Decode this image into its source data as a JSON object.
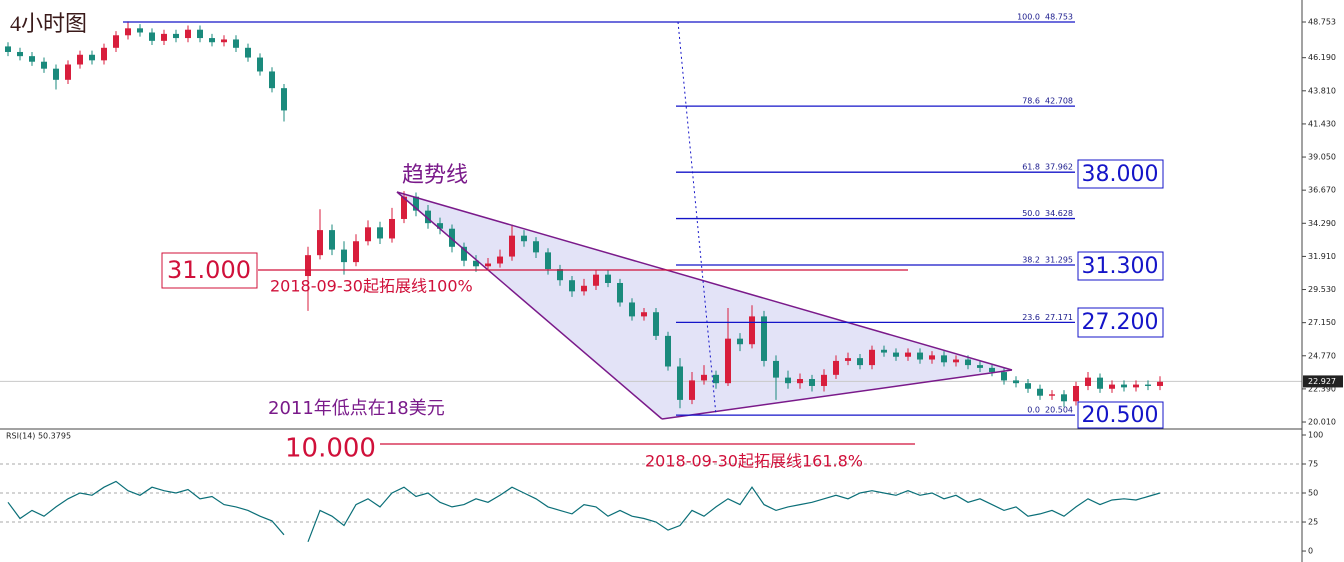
{
  "chart_data": [
    {
      "type": "candlestick",
      "title": "4小时图",
      "open": [
        47.0,
        46.6,
        46.3,
        45.9,
        45.4,
        44.6,
        45.7,
        46.4,
        46.0,
        46.9,
        47.8,
        48.3,
        48.0,
        47.4,
        47.9,
        47.6,
        48.2,
        47.6,
        47.3,
        47.5,
        46.9,
        46.2,
        45.2,
        44.0,
        null,
        30.5,
        32.0,
        33.8,
        32.4,
        31.5,
        33.0,
        34.0,
        33.2,
        34.6,
        36.2,
        35.2,
        34.3,
        33.9,
        32.6,
        31.6,
        31.2,
        31.4,
        31.9,
        33.4,
        33.0,
        32.2,
        31.0,
        30.2,
        29.4,
        29.8,
        30.6,
        30.0,
        28.6,
        27.6,
        27.9,
        26.2,
        24.0,
        21.6,
        23.0,
        23.4,
        22.8,
        26.0,
        25.6,
        27.6,
        24.4,
        23.2,
        22.8,
        23.1,
        22.6,
        23.4,
        24.4,
        24.6,
        24.1,
        25.2,
        25.0,
        24.7,
        25.0,
        24.5,
        24.8,
        24.3,
        24.5,
        24.1,
        23.9,
        23.6,
        23.0,
        22.8,
        22.4,
        21.9,
        22.0,
        21.5,
        22.6,
        23.2,
        22.4,
        22.7,
        22.5,
        22.7,
        22.6
      ],
      "high": [
        47.3,
        46.9,
        46.6,
        46.2,
        45.7,
        46.0,
        46.7,
        46.7,
        47.2,
        48.1,
        48.8,
        48.6,
        48.3,
        48.2,
        48.2,
        48.5,
        48.5,
        47.9,
        47.8,
        47.8,
        47.2,
        46.5,
        45.5,
        44.3,
        null,
        32.6,
        35.3,
        34.2,
        33.0,
        33.5,
        34.5,
        34.4,
        35.4,
        36.6,
        36.5,
        35.6,
        34.7,
        34.2,
        32.9,
        32.0,
        31.8,
        32.4,
        34.2,
        33.8,
        33.3,
        32.5,
        31.3,
        30.5,
        30.3,
        30.9,
        30.9,
        30.3,
        28.9,
        28.2,
        28.2,
        26.5,
        24.6,
        23.6,
        24.1,
        23.7,
        28.2,
        26.4,
        28.4,
        28.0,
        24.8,
        23.7,
        23.5,
        23.4,
        23.8,
        24.8,
        25.0,
        24.9,
        25.5,
        25.5,
        25.3,
        25.3,
        25.3,
        25.1,
        25.1,
        24.8,
        24.8,
        24.4,
        24.2,
        23.9,
        23.3,
        23.1,
        22.7,
        22.3,
        22.3,
        22.9,
        23.6,
        23.5,
        23.0,
        23.0,
        23.0,
        23.0,
        23.3
      ],
      "low": [
        46.3,
        46.0,
        45.6,
        45.1,
        43.9,
        44.3,
        45.4,
        45.7,
        45.7,
        46.6,
        47.5,
        47.7,
        47.1,
        47.1,
        47.3,
        47.3,
        47.3,
        47.0,
        47.0,
        46.6,
        45.9,
        44.9,
        43.7,
        41.6,
        null,
        28.0,
        31.7,
        32.0,
        30.6,
        31.2,
        32.7,
        32.8,
        32.9,
        34.3,
        34.8,
        33.9,
        33.5,
        32.2,
        31.2,
        30.8,
        30.9,
        31.1,
        31.6,
        32.6,
        31.8,
        30.6,
        29.8,
        29.0,
        29.1,
        29.5,
        29.7,
        28.3,
        27.3,
        27.3,
        25.9,
        23.7,
        21.0,
        21.3,
        22.7,
        22.4,
        22.6,
        25.1,
        25.3,
        24.0,
        21.6,
        22.4,
        22.4,
        22.2,
        22.2,
        23.1,
        24.1,
        23.8,
        23.8,
        24.7,
        24.4,
        24.4,
        24.2,
        24.2,
        24.0,
        24.0,
        23.8,
        23.6,
        23.3,
        22.7,
        22.5,
        22.1,
        21.6,
        21.6,
        21.1,
        21.2,
        22.3,
        22.1,
        22.1,
        22.2,
        22.2,
        22.3,
        22.3
      ],
      "close": [
        46.6,
        46.3,
        45.9,
        45.4,
        44.6,
        45.7,
        46.4,
        46.0,
        46.9,
        47.8,
        48.3,
        48.0,
        47.4,
        47.9,
        47.6,
        48.2,
        47.6,
        47.3,
        47.5,
        46.9,
        46.2,
        45.2,
        44.0,
        42.4,
        null,
        32.0,
        33.8,
        32.4,
        31.5,
        33.0,
        34.0,
        33.2,
        34.6,
        36.2,
        35.2,
        34.3,
        33.9,
        32.6,
        31.6,
        31.2,
        31.4,
        31.9,
        33.4,
        33.0,
        32.2,
        31.0,
        30.2,
        29.4,
        29.8,
        30.6,
        30.0,
        28.6,
        27.6,
        27.9,
        26.2,
        24.0,
        21.6,
        23.0,
        23.4,
        22.8,
        26.0,
        25.6,
        27.6,
        24.4,
        23.2,
        22.8,
        23.1,
        22.6,
        23.4,
        24.4,
        24.6,
        24.1,
        25.2,
        25.0,
        24.7,
        25.0,
        24.5,
        24.8,
        24.3,
        24.5,
        24.1,
        23.9,
        23.6,
        23.0,
        22.8,
        22.4,
        21.9,
        22.0,
        21.5,
        22.6,
        23.2,
        22.4,
        22.7,
        22.5,
        22.7,
        22.6,
        22.9
      ],
      "up_color": "#d81e3c",
      "down_color": "#1a8a7c",
      "ylim": [
        19.58,
        49.76
      ],
      "yticks": [
        48.753,
        {
          "value": 46.19,
          "label": "46.190"
        },
        {
          "value": 43.81,
          "label": "43.810"
        },
        {
          "value": 41.43,
          "label": "41.430"
        },
        {
          "value": 39.05,
          "label": "39.050"
        },
        {
          "value": 36.67,
          "label": "36.670"
        },
        {
          "value": 34.29,
          "label": "34.290"
        },
        {
          "value": 31.91,
          "label": "31.910"
        },
        {
          "value": 29.53,
          "label": "29.530"
        },
        {
          "value": 27.15,
          "label": "27.150"
        },
        {
          "value": 24.77,
          "label": "24.770"
        },
        {
          "value": 22.39,
          "label": "22.390"
        },
        {
          "value": 20.01,
          "label": "20.010"
        }
      ],
      "last_price": 22.927,
      "fib_levels": [
        {
          "label": "100.0",
          "value": 48.753
        },
        {
          "label": "78.6",
          "value": 42.708
        },
        {
          "label": "61.8",
          "value": 37.962
        },
        {
          "label": "50.0",
          "value": 34.628
        },
        {
          "label": "38.2",
          "value": 31.295
        },
        {
          "label": "23.6",
          "value": 27.171
        },
        {
          "label": "0.0",
          "value": 20.504
        }
      ],
      "annotations": [
        "趋势线",
        "31.000",
        "2018-09-30起拓展线100%",
        "2011年低点在18美元",
        "10.000",
        "2018-09-30起拓展线161.8%",
        "38.000",
        "31.300",
        "27.200",
        "20.500"
      ]
    },
    {
      "type": "line",
      "title": "RSI(14) 50.3795",
      "color": "#0b6f78",
      "values": [
        42,
        28,
        35,
        30,
        38,
        45,
        50,
        48,
        55,
        60,
        52,
        48,
        55,
        52,
        50,
        53,
        45,
        47,
        40,
        38,
        35,
        30,
        26,
        14,
        null,
        8,
        35,
        30,
        22,
        40,
        45,
        38,
        50,
        55,
        47,
        50,
        42,
        38,
        40,
        45,
        42,
        48,
        55,
        50,
        45,
        38,
        35,
        32,
        40,
        38,
        30,
        35,
        30,
        28,
        25,
        18,
        22,
        35,
        30,
        38,
        45,
        40,
        55,
        40,
        35,
        38,
        40,
        42,
        45,
        48,
        45,
        50,
        52,
        50,
        48,
        52,
        48,
        50,
        45,
        48,
        42,
        45,
        40,
        35,
        38,
        30,
        32,
        35,
        30,
        38,
        45,
        40,
        44,
        45,
        44,
        47,
        50
      ],
      "ylim": [
        -6,
        104.3
      ],
      "yticks": [
        100,
        75,
        50,
        25,
        0
      ],
      "levels": [
        75,
        50,
        25
      ]
    }
  ]
}
